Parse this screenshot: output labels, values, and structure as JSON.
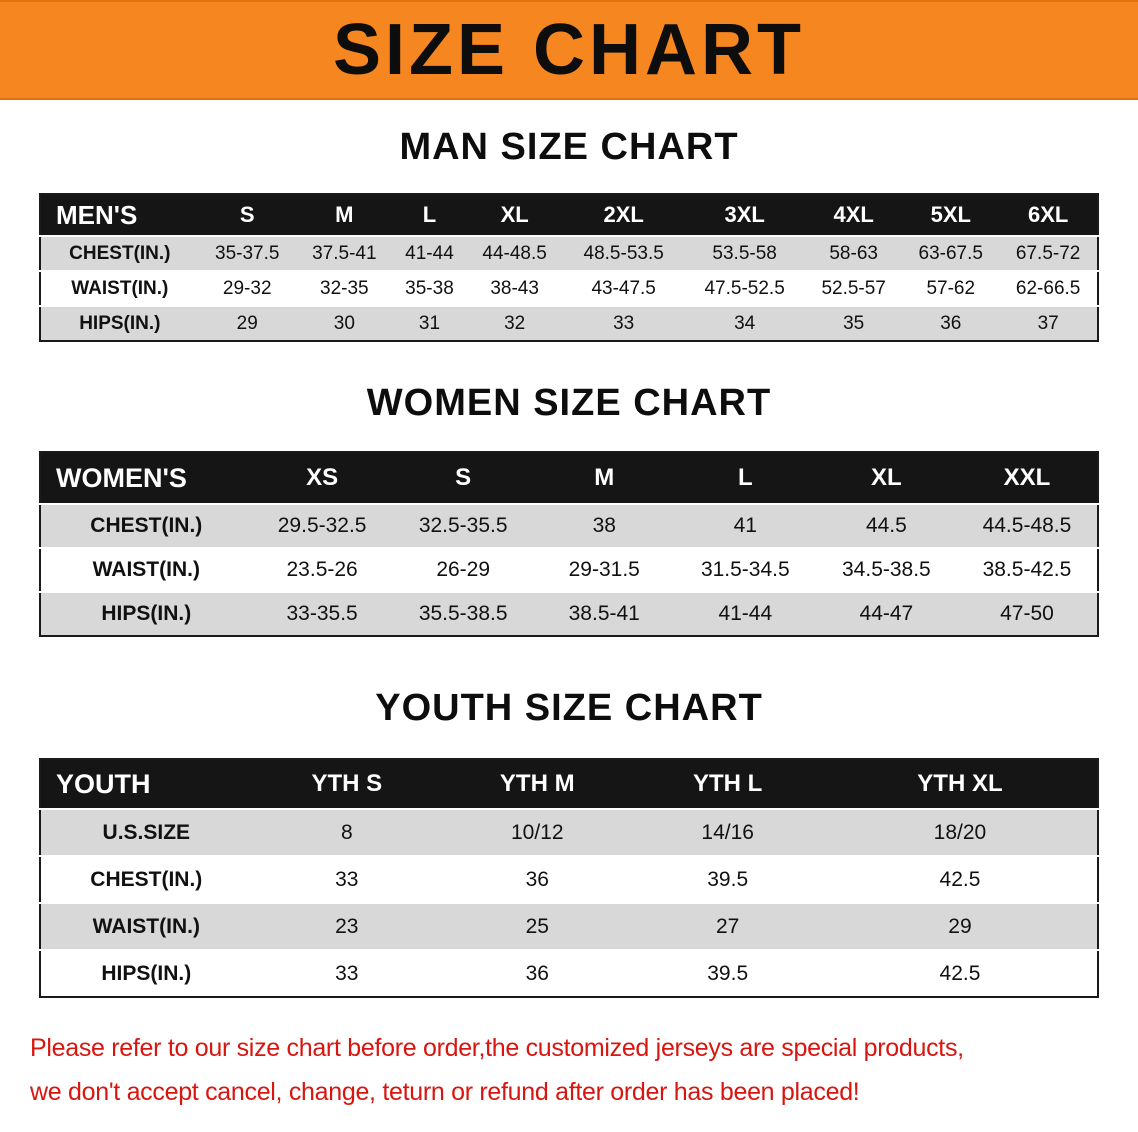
{
  "banner": {
    "title": "SIZE CHART",
    "bg_color": "#F6861F",
    "text_color": "#0d0d0d"
  },
  "colors": {
    "header_bg": "#151515",
    "stripe_bg": "#d8d8d8"
  },
  "sections": [
    {
      "heading": "MAN SIZE CHART",
      "table": {
        "header": [
          "MEN'S",
          "S",
          "M",
          "L",
          "XL",
          "2XL",
          "3XL",
          "4XL",
          "5XL",
          "6XL"
        ],
        "rows": [
          {
            "label": "CHEST(IN.)",
            "values": [
              "35-37.5",
              "37.5-41",
              "41-44",
              "44-48.5",
              "48.5-53.5",
              "53.5-58",
              "58-63",
              "63-67.5",
              "67.5-72"
            ]
          },
          {
            "label": "WAIST(IN.)",
            "values": [
              "29-32",
              "32-35",
              "35-38",
              "38-43",
              "43-47.5",
              "47.5-52.5",
              "52.5-57",
              "57-62",
              "62-66.5"
            ]
          },
          {
            "label": "HIPS(IN.)",
            "values": [
              "29",
              "30",
              "31",
              "32",
              "33",
              "34",
              "35",
              "36",
              "37"
            ]
          }
        ]
      }
    },
    {
      "heading": "WOMEN SIZE CHART",
      "table": {
        "header": [
          "WOMEN'S",
          "XS",
          "S",
          "M",
          "L",
          "XL",
          "XXL"
        ],
        "rows": [
          {
            "label": "CHEST(IN.)",
            "values": [
              "29.5-32.5",
              "32.5-35.5",
              "38",
              "41",
              "44.5",
              "44.5-48.5"
            ]
          },
          {
            "label": "WAIST(IN.)",
            "values": [
              "23.5-26",
              "26-29",
              "29-31.5",
              "31.5-34.5",
              "34.5-38.5",
              "38.5-42.5"
            ]
          },
          {
            "label": "HIPS(IN.)",
            "values": [
              "33-35.5",
              "35.5-38.5",
              "38.5-41",
              "41-44",
              "44-47",
              "47-50"
            ]
          }
        ]
      }
    },
    {
      "heading": "YOUTH SIZE CHART",
      "table": {
        "header": [
          "YOUTH",
          "YTH S",
          "YTH M",
          "YTH L",
          "YTH XL"
        ],
        "rows": [
          {
            "label": "U.S.SIZE",
            "values": [
              "8",
              "10/12",
              "14/16",
              "18/20"
            ]
          },
          {
            "label": "CHEST(IN.)",
            "values": [
              "33",
              "36",
              "39.5",
              "42.5"
            ]
          },
          {
            "label": "WAIST(IN.)",
            "values": [
              "23",
              "25",
              "27",
              "29"
            ]
          },
          {
            "label": "HIPS(IN.)",
            "values": [
              "33",
              "36",
              "39.5",
              "42.5"
            ]
          }
        ]
      }
    }
  ],
  "disclaimer": {
    "line1": "Please refer to our size chart before order,the customized jerseys are special products,",
    "line2": "we don't accept cancel, change, teturn or refund after order has been placed!",
    "color": "#d8150f"
  }
}
